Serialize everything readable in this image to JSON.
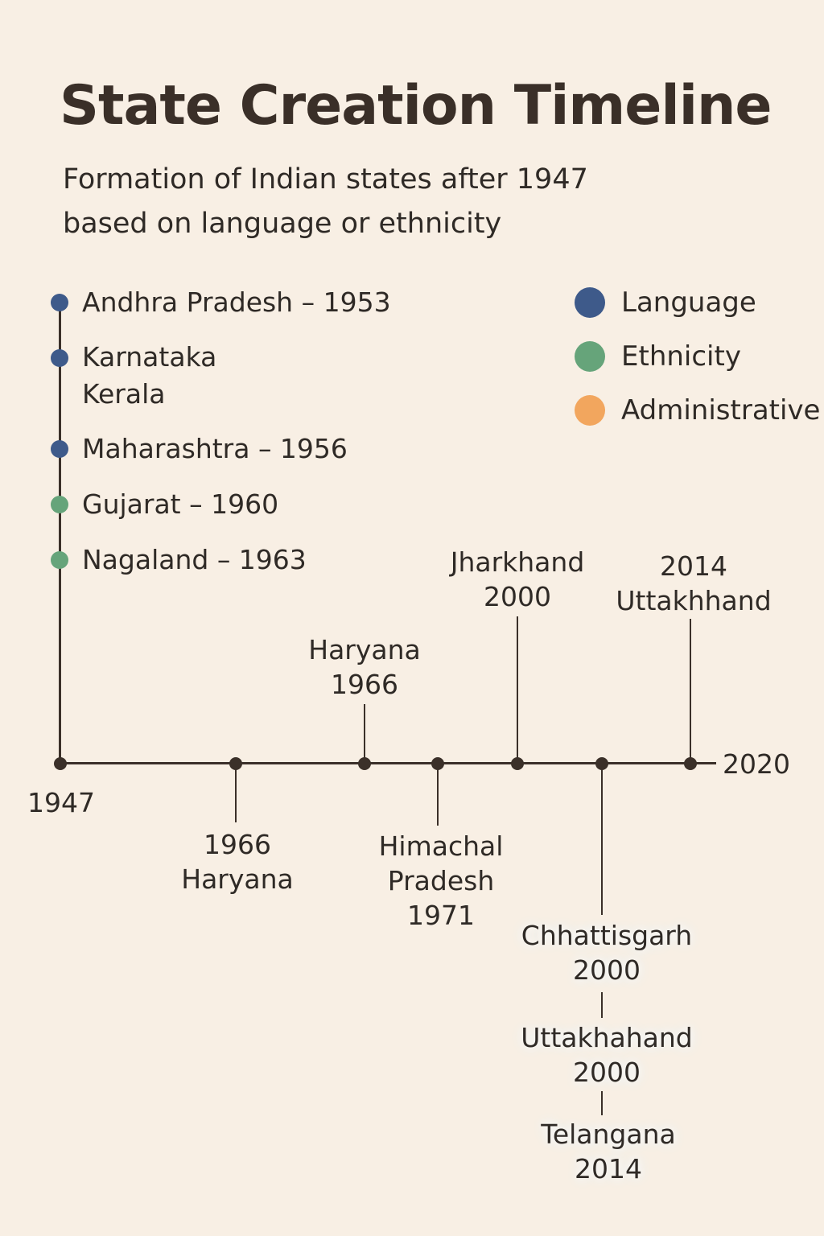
{
  "title": "State Creation Timeline",
  "subtitle": {
    "line1": "Formation of Indian states after 1947",
    "line2": "based on language or ethnicity"
  },
  "colors": {
    "language": "#3e5a8a",
    "ethnicity": "#66a47a",
    "administrative": "#f2a65e",
    "line": "#3b3029"
  },
  "legend": [
    {
      "label": "Language",
      "color": "#3e5a8a"
    },
    {
      "label": "Ethnicity",
      "color": "#66a47a"
    },
    {
      "label": "Administrative",
      "color": "#f2a65e"
    }
  ],
  "vertical_list": [
    {
      "lines": [
        "Andhra Pradesh – 1953"
      ],
      "category": "language"
    },
    {
      "lines": [
        "Karnataka",
        "Kerala"
      ],
      "category": "language"
    },
    {
      "lines": [
        "Maharashtra – 1956"
      ],
      "category": "language"
    },
    {
      "lines": [
        "Gujarat – 1960"
      ],
      "category": "ethnicity"
    },
    {
      "lines": [
        "Nagaland – 1963"
      ],
      "category": "ethnicity"
    }
  ],
  "axis": {
    "start_label": "1947",
    "end_label": "2020"
  },
  "events_above": [
    {
      "lines": [
        "Haryana",
        "1966"
      ]
    },
    {
      "lines": [
        "Jharkhand",
        "2000"
      ]
    },
    {
      "lines": [
        "2014",
        "Uttakhhand"
      ]
    }
  ],
  "events_below": [
    {
      "lines": [
        "1966",
        "Haryana"
      ]
    },
    {
      "lines": [
        "Himachal",
        "Pradesh",
        "1971"
      ]
    },
    {
      "lines": [
        "Chhattisgarh",
        "2000"
      ]
    },
    {
      "lines": [
        "Uttakhahand",
        "2000"
      ]
    },
    {
      "lines": [
        "Telangana",
        "2014"
      ]
    }
  ]
}
